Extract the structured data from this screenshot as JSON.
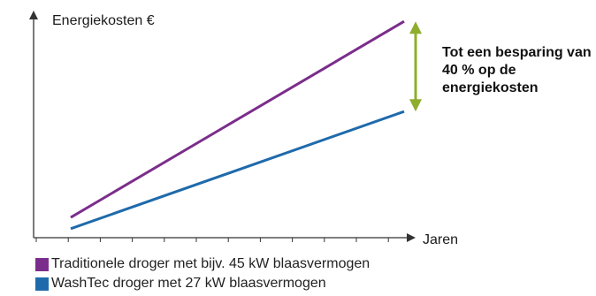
{
  "chart_data": {
    "type": "line",
    "ylabel": "Energiekosten €",
    "xlabel": "Jaren",
    "x": [
      0,
      1
    ],
    "ylim": [
      0,
      1
    ],
    "series": [
      {
        "name": "Traditionele droger met bijv. 45 kW blaasvermogen",
        "color": "#7b2d8b",
        "values": [
          0.09,
          0.96
        ]
      },
      {
        "name": "WashTec droger met 27 kW blaasvermogen",
        "color": "#1f6aab",
        "values": [
          0.04,
          0.56
        ]
      }
    ],
    "annotation": "Tot een besparing van 40 % op de energiekosten",
    "annotation_arrow_color": "#8fae2e",
    "grid": false,
    "legend_position": "bottom-left"
  }
}
